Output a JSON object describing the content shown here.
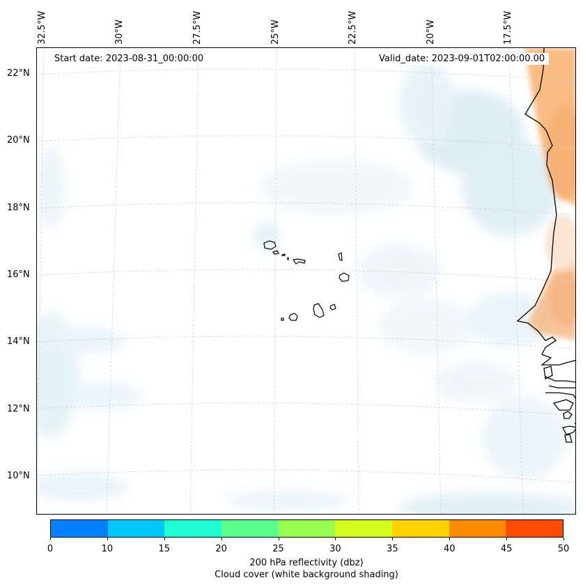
{
  "map": {
    "start_date": "Start date: 2023-08-31_00:00:00",
    "valid_date": "Valid_date: 2023-09-01T02:00:00.00",
    "longitude_labels": [
      "32.5°W",
      "30°W",
      "27.5°W",
      "25°W",
      "22.5°W",
      "20°W",
      "17.5°W"
    ],
    "latitude_labels": [
      "22°N",
      "20°N",
      "18°N",
      "16°N",
      "14°N",
      "12°N",
      "10°N"
    ]
  },
  "colorbar": {
    "ticks": [
      "0",
      "10",
      "15",
      "20",
      "25",
      "30",
      "35",
      "40",
      "45",
      "50"
    ],
    "colors": [
      "#0080ff",
      "#00c8ff",
      "#1effd2",
      "#5aff8c",
      "#96ff50",
      "#d2ff1e",
      "#ffd200",
      "#ff8c00",
      "#ff4b00"
    ],
    "label_line1": "200 hPa reflectivity (dbz)",
    "label_line2": "Cloud cover (white background shading)"
  }
}
